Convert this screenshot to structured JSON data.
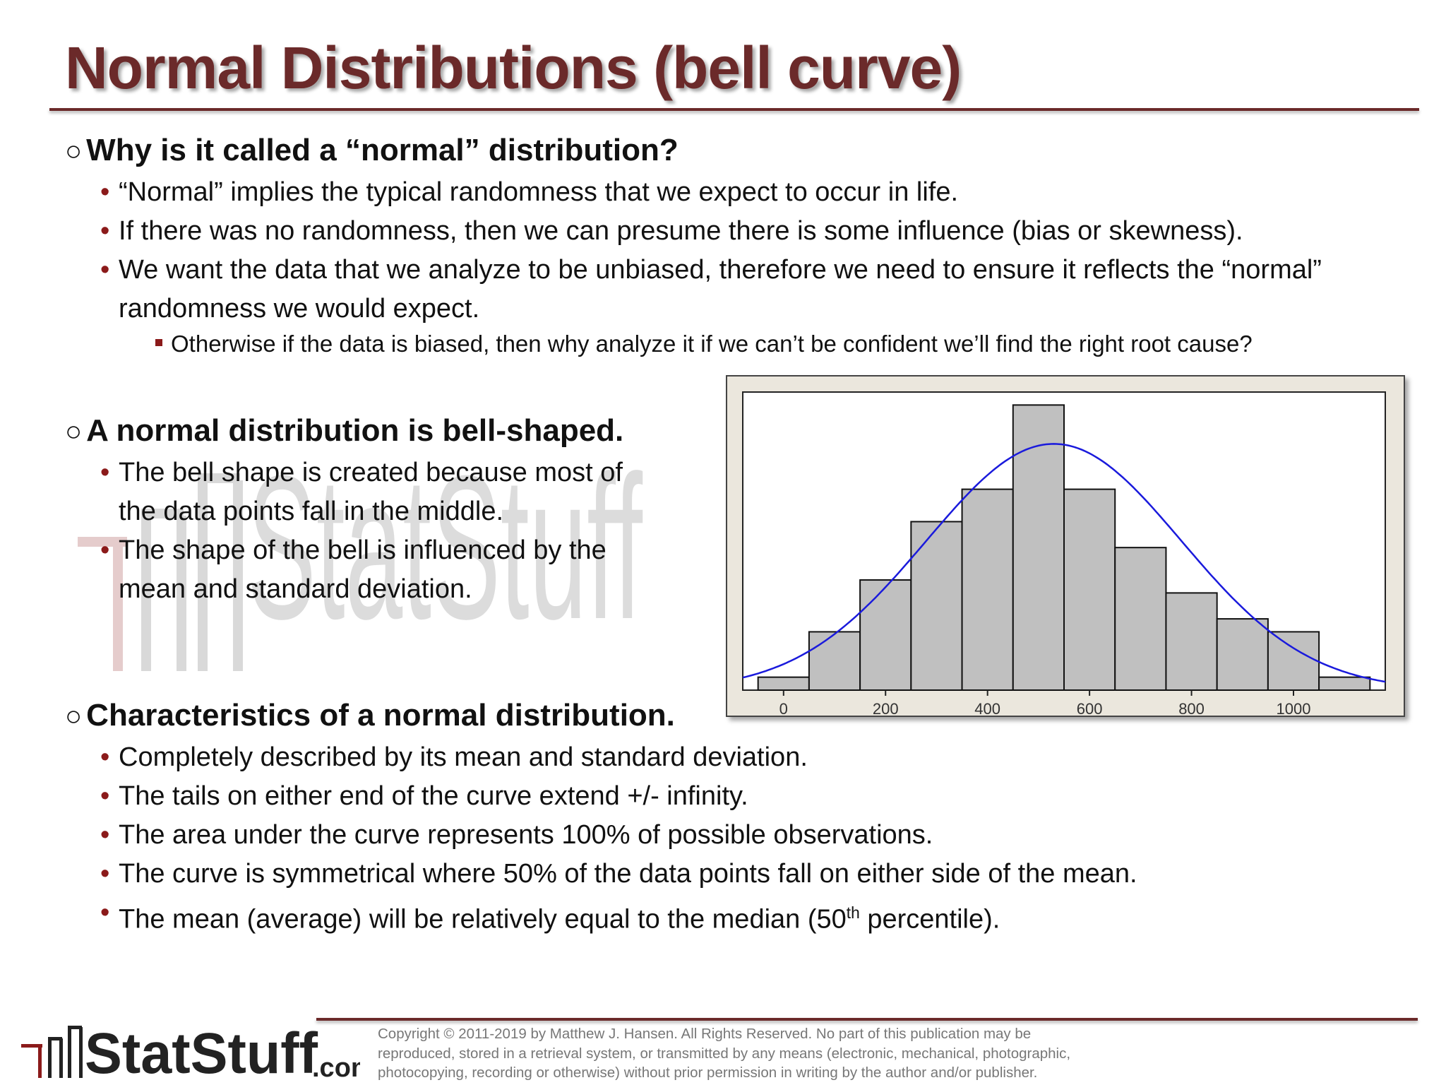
{
  "slide": {
    "title": "Normal Distributions (bell curve)",
    "watermark_text": "StatStuff",
    "sections": [
      {
        "heading": "Why is it called a “normal” distribution?",
        "bullets": [
          "“Normal” implies the typical randomness that we expect to occur in life.",
          "If there was no randomness, then we can presume there is some influence (bias or skewness).",
          "We want the data that we analyze to be unbiased, therefore we need to ensure it reflects the “normal” randomness we would expect."
        ],
        "sub_bullets": [
          "Otherwise if the data is biased, then why analyze it if we can’t be confident we’ll find the right root cause?"
        ]
      },
      {
        "heading": "A normal distribution is bell-shaped.",
        "bullets": [
          "The bell shape is created because most of the data points fall in the middle.",
          "The shape of the bell is influenced by the mean and standard deviation."
        ]
      },
      {
        "heading": "Characteristics of a normal distribution.",
        "bullets": [
          "Completely described by its mean and standard deviation.",
          "The tails on either end of the curve extend +/- infinity.",
          "The area under the curve represents 100% of possible observations.",
          "The curve is symmetrical where 50% of the data points fall on either side of the mean."
        ],
        "last_bullet": {
          "before": "The mean (average) will be relatively equal to the median (50",
          "sup": "th",
          "after": " percentile)."
        }
      }
    ]
  },
  "chart_data": {
    "type": "bar",
    "subtype": "histogram",
    "x_ticks": [
      0,
      200,
      400,
      600,
      800,
      1000
    ],
    "bins": [
      {
        "start": -50,
        "end": 50,
        "count": 2
      },
      {
        "start": 50,
        "end": 150,
        "count": 9
      },
      {
        "start": 150,
        "end": 250,
        "count": 17
      },
      {
        "start": 250,
        "end": 350,
        "count": 26
      },
      {
        "start": 350,
        "end": 450,
        "count": 31
      },
      {
        "start": 450,
        "end": 550,
        "count": 44
      },
      {
        "start": 550,
        "end": 650,
        "count": 31
      },
      {
        "start": 650,
        "end": 750,
        "count": 22
      },
      {
        "start": 750,
        "end": 850,
        "count": 15
      },
      {
        "start": 850,
        "end": 950,
        "count": 11
      },
      {
        "start": 950,
        "end": 1050,
        "count": 9
      },
      {
        "start": 1050,
        "end": 1150,
        "count": 2
      }
    ],
    "fit_curve": {
      "type": "normal",
      "mean": 530,
      "sd": 250,
      "peak_count": 38
    },
    "xlim": [
      -80,
      1180
    ],
    "ylim": [
      0,
      46
    ],
    "grid": false,
    "colors": {
      "bar_fill": "#c0c0c0",
      "bar_stroke": "#111111",
      "curve": "#1a1adc",
      "frame": "#ebe7dd"
    }
  },
  "footer": {
    "logo_text": "StatStuff",
    "logo_suffix": ".com",
    "copyright_lines": [
      "Copyright © 2011-2019 by Matthew  J. Hansen.  All Rights Reserved.  No part of this publication may be",
      "reproduced, stored in a retrieval system, or transmitted by any means  (electronic, mechanical, photographic,",
      "photocopying, recording or otherwise) without prior permission in writing by the author and/or publisher."
    ]
  },
  "colors": {
    "title": "#6b2a2a",
    "bullet": "#8b1a1a"
  }
}
